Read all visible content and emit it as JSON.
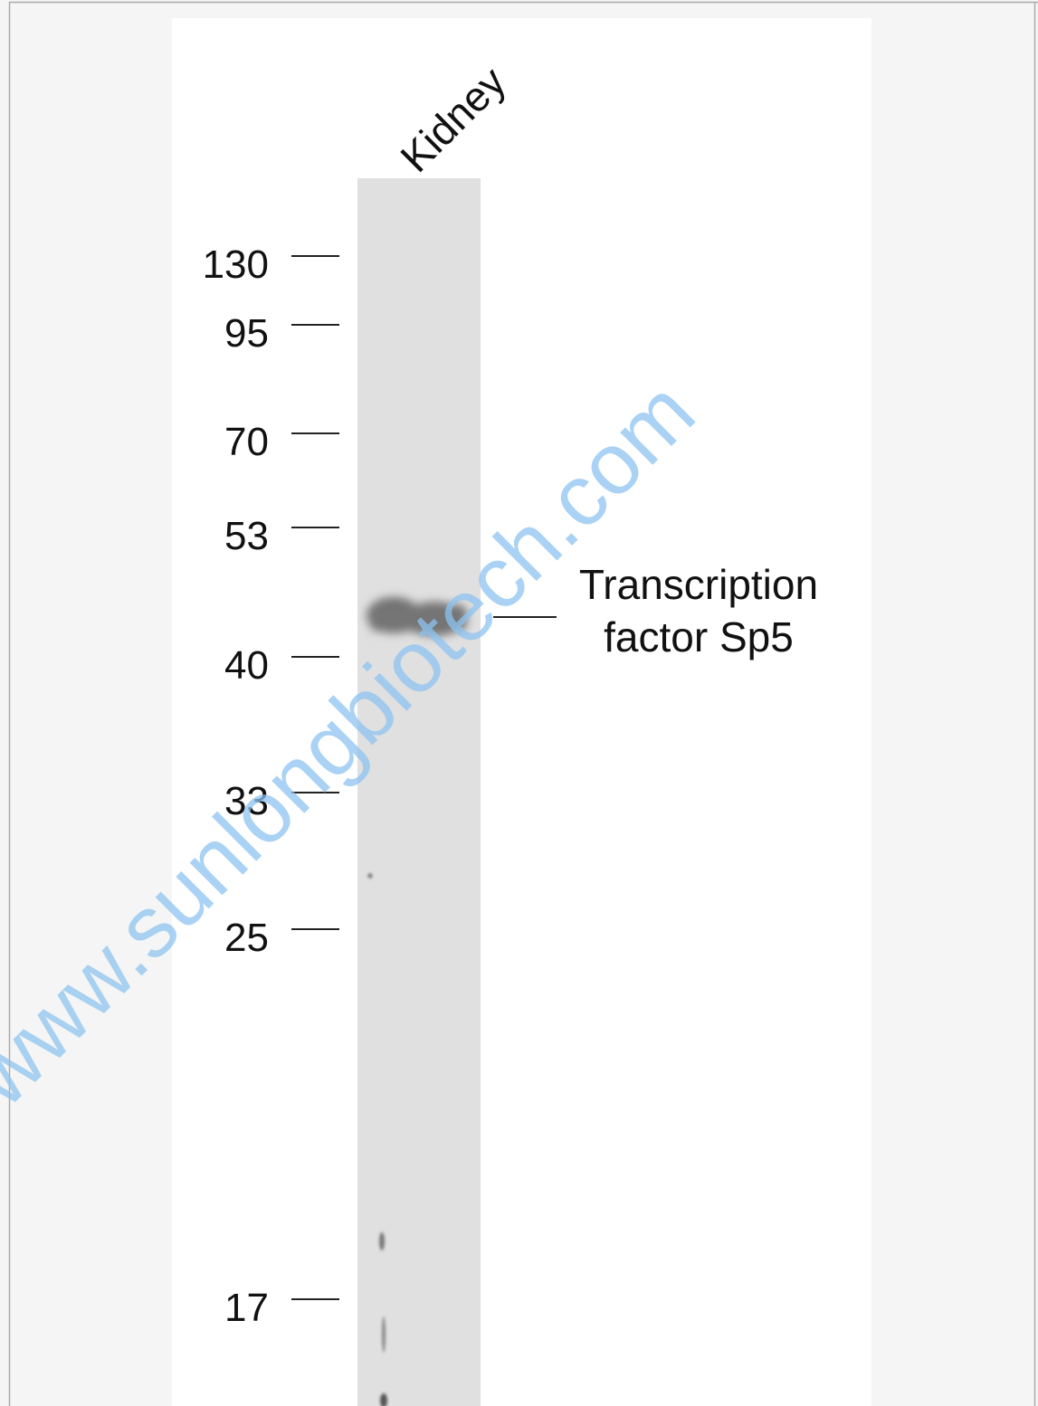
{
  "lane_label": "Kidney",
  "markers": [
    130,
    95,
    70,
    53,
    40,
    33,
    25,
    17
  ],
  "band_label": [
    "Transcription",
    "factor Sp5"
  ],
  "watermark": "www.sunlongbiotech.com"
}
